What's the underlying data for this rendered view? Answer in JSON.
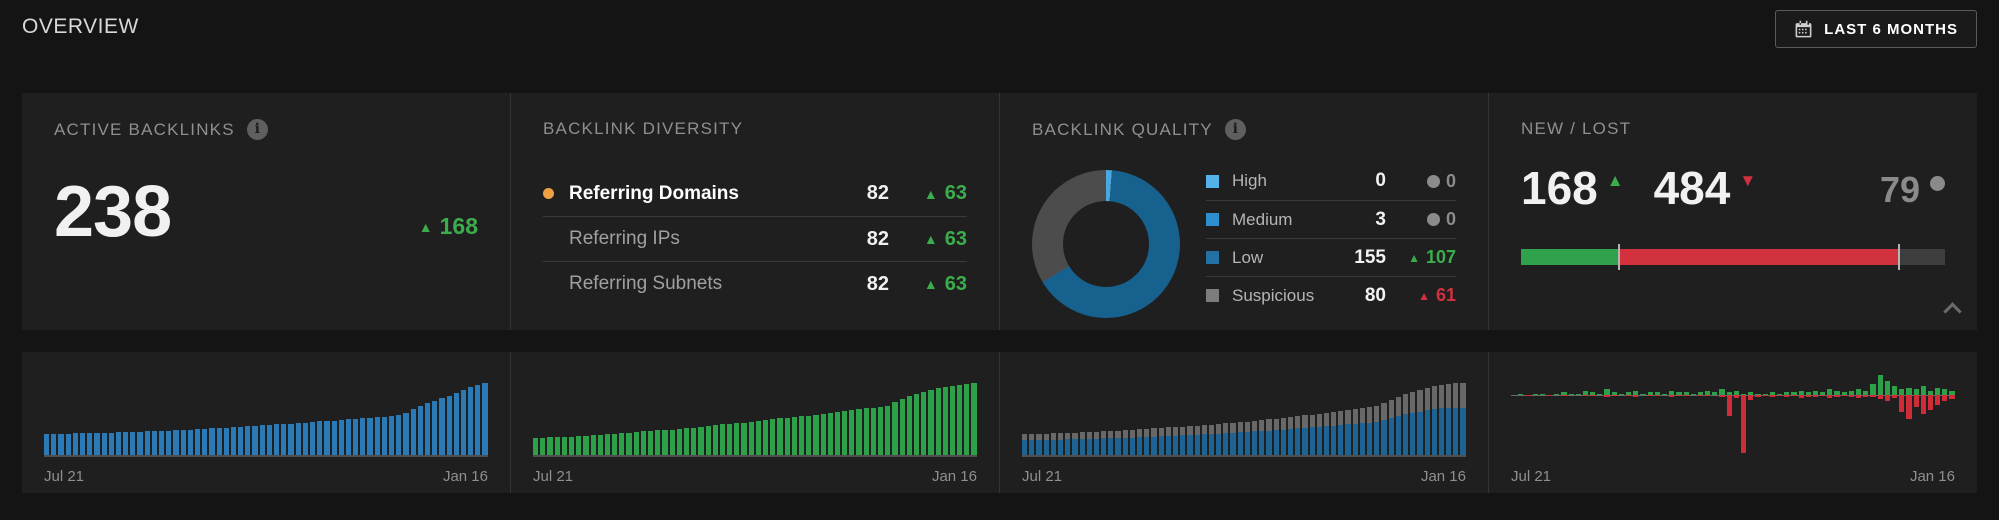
{
  "header": {
    "title": "OVERVIEW",
    "range_button": {
      "label": "LAST 6 MONTHS",
      "icon": "calendar-icon"
    }
  },
  "icons": {
    "up": "▲",
    "down": "▼",
    "dot": "●",
    "info": "i"
  },
  "colors": {
    "bg": "#141414",
    "panel": "#1f1f1f",
    "divider": "#343434",
    "green": "#3bad4c",
    "red": "#d2303e",
    "blue_bar": "#2a7ab8",
    "orange_bullet": "#efa044",
    "gray_value": "#8a8a8a",
    "axis": "#4f4f4f"
  },
  "panels": {
    "active_backlinks": {
      "title": "ACTIVE BACKLINKS",
      "value": "238",
      "delta": {
        "value": "168",
        "direction": "up"
      }
    },
    "backlink_diversity": {
      "title": "BACKLINK DIVERSITY",
      "rows": [
        {
          "label": "Referring Domains",
          "value": "82",
          "delta": "63",
          "delta_direction": "up",
          "selected": true,
          "bullet_color": "#efa044"
        },
        {
          "label": "Referring IPs",
          "value": "82",
          "delta": "63",
          "delta_direction": "up",
          "selected": false
        },
        {
          "label": "Referring Subnets",
          "value": "82",
          "delta": "63",
          "delta_direction": "up",
          "selected": false
        }
      ]
    },
    "backlink_quality": {
      "title": "BACKLINK QUALITY",
      "donut": {
        "total": 238,
        "segments": [
          {
            "label": "Medium",
            "value": 3,
            "color": "#4ba7e0"
          },
          {
            "label": "Low",
            "value": 155,
            "color": "#17618f"
          },
          {
            "label": "Suspicious",
            "value": 80,
            "color": "#4c4c4c"
          }
        ]
      },
      "legend": [
        {
          "label": "High",
          "swatch": "#55b1ea",
          "value": "0",
          "delta": "0",
          "delta_type": "neutral"
        },
        {
          "label": "Medium",
          "swatch": "#2e8fd0",
          "value": "3",
          "delta": "0",
          "delta_type": "neutral"
        },
        {
          "label": "Low",
          "swatch": "#2270a4",
          "value": "155",
          "delta": "107",
          "delta_type": "up-good"
        },
        {
          "label": "Suspicious",
          "swatch": "#7d7d7d",
          "value": "80",
          "delta": "61",
          "delta_type": "up-bad"
        }
      ]
    },
    "new_lost": {
      "title": "NEW / LOST",
      "new": {
        "value": "168",
        "direction": "up"
      },
      "lost": {
        "value": "484",
        "direction": "down"
      },
      "unchanged": {
        "value": "79"
      },
      "ratio_bar": {
        "segments": [
          {
            "name": "new",
            "pct": 23.0,
            "color": "#2fa24b"
          },
          {
            "name": "lost",
            "pct": 66.2,
            "color": "#d2323e"
          },
          {
            "name": "unchanged",
            "pct": 10.8,
            "color": "#3e3e3e"
          }
        ]
      }
    }
  },
  "chart_data": [
    {
      "type": "bar",
      "title": "Active backlinks trend",
      "x_range": {
        "start": "Jul 21",
        "end": "Jan 16"
      },
      "bar_color": "#2a7ab8",
      "ylim": [
        0,
        238
      ],
      "values": [
        70,
        70,
        71,
        71,
        72,
        72,
        73,
        73,
        74,
        74,
        75,
        76,
        76,
        77,
        78,
        79,
        80,
        81,
        82,
        83,
        84,
        85,
        86,
        88,
        89,
        90,
        92,
        93,
        95,
        96,
        98,
        99,
        101,
        102,
        104,
        106,
        107,
        109,
        111,
        113,
        114,
        116,
        118,
        120,
        121,
        123,
        125,
        127,
        129,
        131,
        140,
        152,
        163,
        172,
        180,
        188,
        196,
        205,
        214,
        224,
        231,
        238
      ]
    },
    {
      "type": "bar",
      "title": "Referring domains trend",
      "x_range": {
        "start": "Jul 21",
        "end": "Jan 16"
      },
      "bar_color": "#2da14a",
      "ylim": [
        0,
        82
      ],
      "values": [
        19,
        19,
        20,
        20,
        21,
        21,
        22,
        22,
        23,
        23,
        24,
        24,
        25,
        25,
        26,
        27,
        27,
        28,
        29,
        29,
        30,
        31,
        31,
        32,
        33,
        34,
        35,
        35,
        36,
        37,
        38,
        39,
        40,
        41,
        42,
        42,
        43,
        44,
        45,
        46,
        47,
        48,
        49,
        50,
        51,
        52,
        53,
        54,
        55,
        56,
        60,
        64,
        67,
        70,
        72,
        74,
        76,
        78,
        79,
        80,
        81,
        82
      ]
    },
    {
      "type": "stacked-bar",
      "title": "Backlink quality trend",
      "x_range": {
        "start": "Jul 21",
        "end": "Jan 16"
      },
      "series": [
        {
          "name": "Low",
          "color": "#1d6394",
          "values": [
            48,
            48,
            49,
            49,
            50,
            50,
            51,
            51,
            52,
            52,
            53,
            54,
            54,
            55,
            56,
            57,
            58,
            59,
            60,
            61,
            62,
            63,
            64,
            65,
            66,
            67,
            68,
            70,
            71,
            72,
            74,
            75,
            77,
            78,
            80,
            82,
            83,
            85,
            87,
            89,
            90,
            92,
            94,
            96,
            98,
            100,
            102,
            104,
            106,
            108,
            115,
            122,
            128,
            133,
            138,
            142,
            146,
            149,
            152,
            154,
            155,
            155
          ]
        },
        {
          "name": "Suspicious",
          "color": "#686868",
          "values": [
            20,
            20,
            20,
            21,
            21,
            21,
            22,
            22,
            22,
            23,
            23,
            23,
            24,
            24,
            25,
            25,
            26,
            26,
            27,
            27,
            28,
            28,
            29,
            29,
            30,
            30,
            31,
            31,
            32,
            32,
            33,
            34,
            34,
            35,
            36,
            37,
            38,
            39,
            40,
            41,
            42,
            43,
            44,
            45,
            46,
            47,
            48,
            49,
            50,
            51,
            55,
            59,
            62,
            65,
            68,
            70,
            73,
            75,
            77,
            78,
            79,
            80
          ]
        }
      ]
    },
    {
      "type": "diverging-bar",
      "title": "New / lost backlinks per day",
      "x_range": {
        "start": "Jul 21",
        "end": "Jan 16"
      },
      "series": [
        {
          "name": "new",
          "color": "#2da14a",
          "values": [
            0,
            1,
            0,
            1,
            1,
            0,
            1,
            2,
            1,
            1,
            3,
            2,
            1,
            4,
            2,
            1,
            2,
            3,
            1,
            2,
            2,
            1,
            3,
            2,
            2,
            1,
            2,
            3,
            2,
            4,
            2,
            3,
            1,
            2,
            1,
            1,
            2,
            1,
            2,
            2,
            3,
            2,
            3,
            2,
            4,
            3,
            2,
            3,
            4,
            3,
            8,
            14,
            10,
            6,
            4,
            5,
            4,
            6,
            3,
            5,
            4,
            3
          ]
        },
        {
          "name": "lost",
          "color": "#cf2b38",
          "values": [
            0,
            0,
            1,
            0,
            0,
            1,
            0,
            1,
            0,
            0,
            1,
            1,
            0,
            2,
            1,
            0,
            1,
            2,
            0,
            1,
            1,
            0,
            2,
            1,
            1,
            0,
            1,
            1,
            0,
            2,
            22,
            3,
            60,
            5,
            2,
            1,
            2,
            1,
            2,
            1,
            3,
            2,
            2,
            1,
            3,
            2,
            1,
            2,
            3,
            2,
            2,
            4,
            6,
            3,
            18,
            25,
            12,
            20,
            15,
            10,
            6,
            4
          ]
        }
      ]
    }
  ]
}
